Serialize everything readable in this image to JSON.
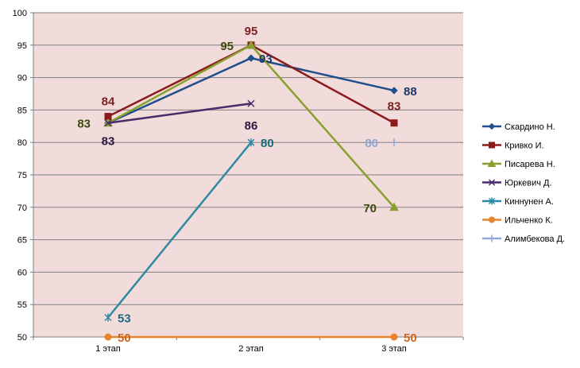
{
  "chart_data": {
    "type": "line",
    "categories": [
      "1 этап",
      "2 этап",
      "3 этап"
    ],
    "ylim": [
      50,
      100
    ],
    "yticks": [
      50,
      55,
      60,
      65,
      70,
      75,
      80,
      85,
      90,
      95,
      100
    ],
    "grid": true,
    "legend": "right",
    "background": "#f2dcdb",
    "series": [
      {
        "name": "Скардино Н.",
        "values": [
          83,
          93,
          88
        ],
        "labels": [
          "",
          "93",
          "88"
        ],
        "color": "#1f4e8c",
        "marker": "diamond",
        "label_color": "#1f3864"
      },
      {
        "name": "Кривко И.",
        "values": [
          84,
          95,
          83
        ],
        "labels": [
          "84",
          "95",
          "83"
        ],
        "color": "#8b1a1a",
        "marker": "square",
        "label_color": "#7b1f1f"
      },
      {
        "name": "Писарева Н.",
        "values": [
          83,
          95,
          70
        ],
        "labels": [
          "83",
          "95",
          "70"
        ],
        "color": "#8aa02e",
        "marker": "triangle",
        "label_color": "#3b4a10"
      },
      {
        "name": "Юркевич Д.",
        "values": [
          83,
          86,
          null
        ],
        "labels": [
          "83",
          "86",
          ""
        ],
        "color": "#4a2a6a",
        "marker": "x",
        "label_color": "#2a1840"
      },
      {
        "name": "Киннунен А.",
        "values": [
          53,
          80,
          null
        ],
        "labels": [
          "53",
          "80",
          ""
        ],
        "color": "#2e8aa3",
        "marker": "star",
        "label_color": "#1d6a7e"
      },
      {
        "name": "Ильченко К.",
        "values": [
          50,
          null,
          50
        ],
        "labels": [
          "50",
          "",
          "50"
        ],
        "color": "#e8852c",
        "marker": "circle",
        "label_color": "#c8641e"
      },
      {
        "name": "Алимбекова Д.",
        "values": [
          null,
          null,
          80
        ],
        "labels": [
          "",
          "",
          "80"
        ],
        "color": "#8fa6d6",
        "marker": "plus",
        "label_color": "#8fa6d6"
      }
    ]
  }
}
